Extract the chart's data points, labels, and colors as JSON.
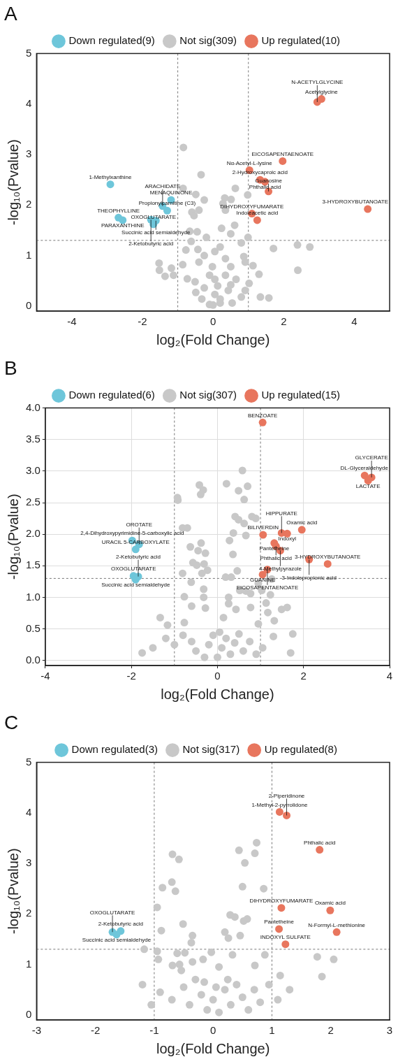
{
  "chart_data": [
    {
      "type": "scatter",
      "title": "A",
      "xlabel": "log₂(Fold Change)",
      "ylabel": "-log₁₀(Pvalue)",
      "xlim": [
        -5,
        5
      ],
      "ylim": [
        -0.1,
        5
      ],
      "xticks": [
        -4,
        -2,
        0,
        2,
        4
      ],
      "yticks": [
        0,
        1,
        2,
        3,
        4,
        5
      ],
      "grid": false,
      "legend": "top",
      "marker": "circle",
      "ref_lines": [
        {
          "axis": "x",
          "value": -1,
          "line_style": "dashed",
          "color": "#777777"
        },
        {
          "axis": "x",
          "value": 1,
          "line_style": "dashed",
          "color": "#777777"
        },
        {
          "axis": "y",
          "value": 1.3,
          "line_style": "dashed",
          "color": "#777777"
        }
      ],
      "series": [
        {
          "name": "Down regulated(9)",
          "color": "#6ec6da",
          "x": [
            -2.91,
            -1.19,
            -1.43,
            -1.3,
            -2.68,
            -2.56,
            -1.62,
            -1.76,
            -1.69
          ],
          "values": [
            2.41,
            2.1,
            1.98,
            1.89,
            1.75,
            1.7,
            1.69,
            1.71,
            1.62
          ]
        },
        {
          "name": "Not sig(309)",
          "color": "#c8c8c8",
          "x": [
            -0.84,
            -0.34,
            -0.85,
            -0.49,
            -0.25,
            0.63,
            0.98,
            0.33,
            0.51,
            0.28,
            -0.4,
            -0.6,
            -0.54,
            0.35,
            0.61,
            0.24,
            0.5,
            -0.66,
            -0.45,
            -0.19,
            0.99,
            -0.62,
            -0.77,
            -0.43,
            0.2,
            0.8,
            1.71,
            2.39,
            2.74,
            2.4,
            -1.53,
            -1.52,
            -1.18,
            -1.36,
            -1.12,
            -0.86,
            -0.4,
            -0.73,
            -0.51,
            -0.49,
            -0.1,
            0.2,
            0.05,
            -0.25,
            0.05,
            0.35,
            0.5,
            0.87,
            0.91,
            1.13,
            1.3,
            1.02,
            0.91,
            0.8,
            1.34,
            1.58,
            0.54,
            -0.02,
            0.13,
            -0.1,
            -0.32,
            0.35,
            0.05,
            -0.25,
            0.43,
            0.2,
            0.65,
            0,
            0.5
          ],
          "values": [
            3.14,
            2.6,
            2.33,
            2.21,
            2.1,
            2.33,
            2.2,
            2.14,
            2.11,
            2.03,
            1.9,
            1.86,
            1.79,
            1.9,
            1.6,
            1.54,
            1.43,
            1.48,
            1.47,
            1.36,
            1.36,
            1.28,
            1.11,
            1.12,
            1.17,
            1.25,
            1.14,
            1.21,
            1.17,
            0.71,
            0.85,
            0.71,
            0.75,
            0.59,
            0.61,
            0.82,
            0.87,
            0.54,
            0.48,
            0.27,
            0.03,
            0.06,
            0.23,
            0.36,
            0.53,
            0.61,
            0.78,
            0.98,
            0.87,
            0.8,
            0.63,
            0.45,
            0.31,
            0.18,
            0.18,
            0.16,
            0.06,
            0.78,
            0.4,
            0.61,
            0.14,
            0.94,
            1.08,
            1,
            0.31,
            0.14,
            0.53,
            0.02,
            0.42
          ]
        },
        {
          "name": "Up regulated(10)",
          "color": "#e8765e",
          "x": [
            3.07,
            2.95,
            1.97,
            1.03,
            1.33,
            1.47,
            1.57,
            4.38,
            1.1,
            1.25
          ],
          "values": [
            4.1,
            4.04,
            2.87,
            2.69,
            2.5,
            2.46,
            2.27,
            1.92,
            1.83,
            1.7
          ]
        }
      ],
      "annotations": [
        {
          "text": "Acetylglycine",
          "x": 3.07,
          "y": 4.1
        },
        {
          "text": "N-ACETYLGLYCINE",
          "x": 2.95,
          "y": 4.04
        },
        {
          "text": "EICOSAPENTAENOATE",
          "x": 1.97,
          "y": 2.87
        },
        {
          "text": "Nα-Acetyl-L-lysine",
          "x": 1.03,
          "y": 2.69
        },
        {
          "text": "2-Hydroxycaproic acid",
          "x": 1.33,
          "y": 2.5
        },
        {
          "text": "Phthalic acid",
          "x": 1.47,
          "y": 2.46
        },
        {
          "text": "Guanosine",
          "x": 1.57,
          "y": 2.27
        },
        {
          "text": "3-HYDROXYBUTANOATE",
          "x": 4.38,
          "y": 1.92
        },
        {
          "text": "DIHYDROXYFUMARATE",
          "x": 1.1,
          "y": 1.83
        },
        {
          "text": "Indoleacetic acid",
          "x": 1.25,
          "y": 1.7
        },
        {
          "text": "1-Methylxanthine",
          "x": -2.91,
          "y": 2.41
        },
        {
          "text": "MENAQUINONE",
          "x": -1.19,
          "y": 2.1
        },
        {
          "text": "ARACHIDATE",
          "x": -1.43,
          "y": 1.98
        },
        {
          "text": "Propionylcarnitine (C3)",
          "x": -1.3,
          "y": 1.89
        },
        {
          "text": "THEOPHYLLINE",
          "x": -2.68,
          "y": 1.75
        },
        {
          "text": "PARAXANTHINE",
          "x": -2.56,
          "y": 1.7
        },
        {
          "text": "Succinic acid semialdehyde",
          "x": -1.62,
          "y": 1.69
        },
        {
          "text": "2-Ketobutyric acid",
          "x": -1.76,
          "y": 1.71
        },
        {
          "text": "OXOGLUTARATE",
          "x": -1.69,
          "y": 1.62
        }
      ]
    },
    {
      "type": "scatter",
      "title": "B",
      "xlabel": "log₂(Fold Change)",
      "ylabel": "-log₁₀(Pvalue)",
      "xlim": [
        -4,
        4
      ],
      "ylim": [
        -0.08,
        4
      ],
      "xticks": [
        -4,
        -2,
        0,
        2,
        4
      ],
      "yticks": [
        {
          "value": 0,
          "label": "0.0"
        },
        {
          "value": 0.5,
          "label": "0.5"
        },
        {
          "value": 1,
          "label": "1.0"
        },
        {
          "value": 1.5,
          "label": "1.5"
        },
        {
          "value": 2,
          "label": "2.0"
        },
        {
          "value": 2.5,
          "label": "2.5"
        },
        {
          "value": 3,
          "label": "3.0"
        },
        {
          "value": 3.5,
          "label": "3.5"
        },
        {
          "value": 4,
          "label": "4.0"
        }
      ],
      "grid": true,
      "legend": "top",
      "marker": "circle",
      "ref_lines": [
        {
          "axis": "x",
          "value": -1,
          "line_style": "dashed",
          "color": "#777777"
        },
        {
          "axis": "x",
          "value": 1,
          "line_style": "dashed",
          "color": "#777777"
        },
        {
          "axis": "y",
          "value": 1.3,
          "line_style": "dashed",
          "color": "#777777"
        }
      ],
      "series": [
        {
          "name": "Down regulated(6)",
          "color": "#6ec6da",
          "x": [
            -1.98,
            -1.82,
            -1.9,
            -1.95,
            -1.84,
            -1.9
          ],
          "values": [
            1.9,
            1.84,
            1.76,
            1.34,
            1.33,
            1.28
          ]
        },
        {
          "name": "Not sig(307)",
          "color": "#c8c8c8",
          "x": [
            0.58,
            -0.42,
            -0.33,
            -0.39,
            0.21,
            0.49,
            0.7,
            0.62,
            -0.93,
            -0.92,
            0.41,
            0.49,
            0.62,
            0.8,
            0.89,
            -0.81,
            -0.7,
            0.37,
            0.66,
            0.28,
            -0.38,
            -0.63,
            -0.45,
            -0.28,
            0.36,
            -0.57,
            -0.48,
            -0.31,
            -0.23,
            -0.81,
            -0.36,
            0.46,
            1.26,
            0.19,
            0.32,
            0.95,
            -0.61,
            0.66,
            0.52,
            1.03,
            -0.32,
            1.23,
            -0.77,
            -0.32,
            0.26,
            0.77,
            1.13,
            1.62,
            1.49,
            -0.6,
            -0.28,
            0.26,
            0.43,
            0.77,
            1.17,
            1.32,
            -1.33,
            -1.16,
            -0.77,
            0.14,
            0.95,
            -1.75,
            -1.5,
            -1.2,
            -1,
            -0.8,
            -0.6,
            -0.5,
            -0.3,
            -0.2,
            0,
            0.1,
            0.2,
            0.3,
            0.4,
            0.5,
            0.6,
            0.75,
            0.9,
            1.05,
            1.3,
            1.7,
            1.75,
            -0.1,
            0.05
          ],
          "values": [
            3.01,
            2.78,
            2.7,
            2.63,
            2.8,
            2.69,
            2.76,
            2.55,
            2.58,
            2.54,
            2.28,
            2.23,
            2.17,
            2.28,
            2.25,
            2.1,
            2.1,
            2.02,
            1.98,
            1.9,
            1.86,
            1.8,
            1.74,
            1.7,
            1.68,
            1.55,
            1.51,
            1.53,
            1.43,
            1.38,
            1.38,
            1.42,
            1.29,
            1.32,
            1.32,
            1.22,
            1.24,
            1.1,
            1.11,
            1.11,
            1.13,
            1.04,
            1.01,
            1,
            1,
            1.06,
            0.91,
            0.84,
            0.81,
            0.86,
            0.83,
            0.9,
            0.81,
            0.84,
            0.76,
            0.63,
            0.68,
            0.56,
            0.6,
            0.68,
            0.58,
            0.12,
            0.2,
            0.35,
            0.25,
            0.4,
            0.3,
            0.15,
            0.05,
            0.25,
            0.05,
            0.2,
            0.35,
            0.1,
            0.28,
            0.42,
            0.15,
            0.3,
            0.1,
            0.2,
            0.38,
            0.12,
            0.42,
            0.4,
            0.45
          ]
        },
        {
          "name": "Up regulated(15)",
          "color": "#e8765e",
          "x": [
            1.05,
            3.42,
            3.58,
            3.5,
            1.96,
            1.49,
            1.06,
            1.62,
            1.32,
            1.36,
            1.46,
            2.13,
            2.56,
            1.16,
            1.05
          ],
          "values": [
            3.77,
            2.93,
            2.9,
            2.85,
            2.07,
            2.02,
            1.99,
            2.01,
            1.86,
            1.81,
            1.74,
            1.6,
            1.53,
            1.44,
            1.36
          ]
        }
      ],
      "annotations": [
        {
          "text": "BENZOATE",
          "x": 1.05,
          "y": 3.77
        },
        {
          "text": "DL-Glyceraldehyde",
          "x": 3.42,
          "y": 2.93
        },
        {
          "text": "GLYCERATE",
          "x": 3.58,
          "y": 2.9
        },
        {
          "text": "LACTATE",
          "x": 3.5,
          "y": 2.85
        },
        {
          "text": "Oxamic acid",
          "x": 1.96,
          "y": 2.07
        },
        {
          "text": "HIPPURATE",
          "x": 1.49,
          "y": 2.02
        },
        {
          "text": "BILIVERDIN",
          "x": 1.06,
          "y": 1.99
        },
        {
          "text": "Indoxyl",
          "x": 1.62,
          "y": 2.01
        },
        {
          "text": "Pantetheine",
          "x": 1.32,
          "y": 1.86
        },
        {
          "text": "Phthalic acid",
          "x": 1.36,
          "y": 1.81
        },
        {
          "text": "4-Methylpyrazole",
          "x": 1.46,
          "y": 1.74
        },
        {
          "text": "3-Indolepropionic acid",
          "x": 2.13,
          "y": 1.6
        },
        {
          "text": "3-HYDROXYBUTANOATE",
          "x": 2.56,
          "y": 1.53
        },
        {
          "text": "EICOSAPENTAENOATE",
          "x": 1.16,
          "y": 1.44
        },
        {
          "text": "GUANINE",
          "x": 1.05,
          "y": 1.36
        },
        {
          "text": "2,4-Dihydroxypyrimidine-5-carboxylic acid",
          "x": -1.98,
          "y": 1.9
        },
        {
          "text": "OROTATE",
          "x": -1.82,
          "y": 1.84
        },
        {
          "text": "URACIL 5-CARBOXYLATE",
          "x": -1.9,
          "y": 1.76
        },
        {
          "text": "OXOGLUTARATE",
          "x": -1.95,
          "y": 1.34
        },
        {
          "text": "2-Ketobutyric acid",
          "x": -1.84,
          "y": 1.33
        },
        {
          "text": "Succinic acid semialdehyde",
          "x": -1.9,
          "y": 1.28
        }
      ]
    },
    {
      "type": "scatter",
      "title": "C",
      "xlabel": "log₂(Fold Change)",
      "ylabel": "-log₁₀(Pvalue)",
      "xlim": [
        -3,
        3
      ],
      "ylim": [
        -0.1,
        5
      ],
      "xticks": [
        -3,
        -2,
        -1,
        0,
        1,
        2,
        3
      ],
      "yticks": [
        0,
        1,
        2,
        3,
        4,
        5
      ],
      "grid": false,
      "legend": "top",
      "marker": "circle",
      "ref_lines": [
        {
          "axis": "x",
          "value": -1,
          "line_style": "dashed",
          "color": "#777777"
        },
        {
          "axis": "x",
          "value": 1,
          "line_style": "dashed",
          "color": "#777777"
        },
        {
          "axis": "y",
          "value": 1.3,
          "line_style": "dashed",
          "color": "#777777"
        }
      ],
      "series": [
        {
          "name": "Down regulated(3)",
          "color": "#6ec6da",
          "x": [
            -1.57,
            -1.71,
            -1.64
          ],
          "values": [
            1.66,
            1.64,
            1.59
          ]
        },
        {
          "name": "Not sig(317)",
          "color": "#c8c8c8",
          "x": [
            0.74,
            0.44,
            0.71,
            0.54,
            -0.69,
            -0.58,
            -0.86,
            -0.7,
            -0.64,
            0.5,
            0.86,
            -0.95,
            0.29,
            0.37,
            0.58,
            0.52,
            -0.51,
            -0.88,
            0.2,
            -0.35,
            0.26,
            0.46,
            -0.37,
            -1.17,
            -0.95,
            -0.61,
            -0.48,
            -0.03,
            0.33,
            0.88,
            1.77,
            2.05,
            -0.93,
            -0.17,
            -0.57,
            -0.35,
            0.1,
            0.71,
            -0.69,
            -0.54,
            1.85,
            1.14,
            -1.2,
            -0.9,
            -0.7,
            -0.5,
            -0.4,
            -0.2,
            -0.1,
            0,
            0.1,
            0.2,
            0.3,
            0.4,
            0.5,
            0.6,
            0.7,
            0.8,
            0.95,
            1.1,
            1.3,
            -0.3,
            0.25,
            -1.05,
            0.05,
            -0.15
          ],
          "values": [
            3.41,
            3.26,
            3.2,
            3.01,
            3.18,
            3.08,
            2.52,
            2.63,
            2.45,
            2.54,
            2.5,
            2.13,
            1.98,
            1.94,
            1.9,
            1.86,
            1.8,
            1.67,
            1.64,
            1.57,
            1.52,
            1.57,
            1.43,
            1.3,
            1.26,
            1.22,
            1.23,
            1.24,
            1.19,
            1.19,
            1.15,
            1.1,
            1.1,
            1.1,
            1,
            1.05,
            0.95,
            0.98,
            0.98,
            0.88,
            0.76,
            0.78,
            0.6,
            0.45,
            0.3,
            0.55,
            0.2,
            0.4,
            0.1,
            0.3,
            0.05,
            0.5,
            0.2,
            0.6,
            0.35,
            0.1,
            0.5,
            0.25,
            0.6,
            0.3,
            0.5,
            0.7,
            0.7,
            0.2,
            0.55,
            0.65
          ]
        },
        {
          "name": "Up regulated(8)",
          "color": "#e8765e",
          "x": [
            1.13,
            1.25,
            1.81,
            1.16,
            1.99,
            1.12,
            2.1,
            1.23
          ],
          "values": [
            4.02,
            3.95,
            3.27,
            2.12,
            2.07,
            1.7,
            1.64,
            1.4
          ]
        }
      ],
      "annotations": [
        {
          "text": "1-Methyl-2-pyrrolidone",
          "x": 1.13,
          "y": 4.02
        },
        {
          "text": "2-Piperidinone",
          "x": 1.25,
          "y": 3.95
        },
        {
          "text": "Phthalic acid",
          "x": 1.81,
          "y": 3.27
        },
        {
          "text": "DIHYDROXYFUMARATE",
          "x": 1.16,
          "y": 2.12
        },
        {
          "text": "Oxamic acid",
          "x": 1.99,
          "y": 2.07
        },
        {
          "text": "Pantetheine",
          "x": 1.12,
          "y": 1.7
        },
        {
          "text": "N-Formyl-L-methionine",
          "x": 2.1,
          "y": 1.64
        },
        {
          "text": "INDOXYL SULFATE",
          "x": 1.23,
          "y": 1.4
        },
        {
          "text": "2-Ketobutyric acid",
          "x": -1.57,
          "y": 1.66
        },
        {
          "text": "OXOGLUTARATE",
          "x": -1.71,
          "y": 1.64
        },
        {
          "text": "Succinic acid semialdehyde",
          "x": -1.64,
          "y": 1.59
        }
      ]
    }
  ]
}
